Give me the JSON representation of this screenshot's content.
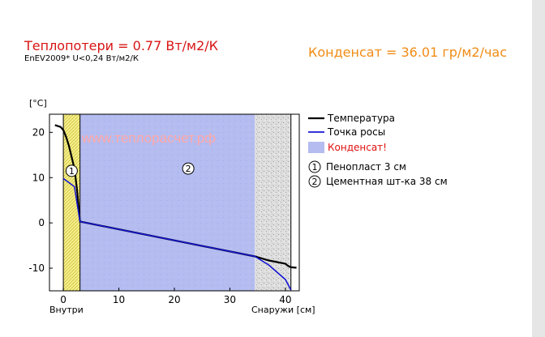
{
  "header": {
    "title": "Теплопотери = 0.77 Вт/м2/К",
    "subtitle": "EnEV2009* U<0,24 Вт/м2/К",
    "condensate": "Конденсат = 36.01 гр/м2/час"
  },
  "colors": {
    "title": "#d81414",
    "condensate": "#f08c14",
    "temperature": "#000000",
    "dew_point": "#1414d2",
    "condensate_zone": "#b4bcf0",
    "foam_layer": "#f5ef8c",
    "outdoor_zone": "#d8d8d8",
    "watermark": "#ffa8a8"
  },
  "chart_data": {
    "type": "line",
    "ylabel": "[°C]",
    "xlabel_left": "Внутри",
    "xlabel_right": "Снаружи [см]",
    "watermark": "www.теплорасчет.рф",
    "xlim": [
      -2.5,
      42.5
    ],
    "ylim": [
      -15,
      24
    ],
    "xticks": [
      0,
      10,
      20,
      30,
      40
    ],
    "yticks": [
      -10,
      0,
      10,
      20
    ],
    "grid": false,
    "legend_position": "right",
    "legend": [
      {
        "label": "Температура",
        "color": "#000000",
        "kind": "line"
      },
      {
        "label": "Точка росы",
        "color": "#1414d2",
        "kind": "line"
      },
      {
        "label": "Конденсат!",
        "color": "#b4bcf0",
        "kind": "box",
        "text_color": "#e01010"
      }
    ],
    "layers": [
      {
        "index": "1",
        "label": "Пенопласт 3 см",
        "x_start": 0,
        "x_end": 3
      },
      {
        "index": "2",
        "label": "Цементная шт-ка 38 см",
        "x_start": 3,
        "x_end": 41
      }
    ],
    "condensate_zone": {
      "x_start": 0.2,
      "x_end": 34.5
    },
    "series": [
      {
        "name": "Температура",
        "color": "#000000",
        "points": [
          [
            -1.5,
            21.6
          ],
          [
            -0.5,
            21.2
          ],
          [
            0,
            20.5
          ],
          [
            0.5,
            19
          ],
          [
            1,
            17
          ],
          [
            1.5,
            14.5
          ],
          [
            2,
            12
          ],
          [
            2.5,
            7
          ],
          [
            3,
            0.3
          ],
          [
            34.5,
            -7.4
          ],
          [
            37,
            -8.3
          ],
          [
            40,
            -9.0
          ],
          [
            40.5,
            -9.5
          ],
          [
            41,
            -9.8
          ],
          [
            42,
            -9.9
          ]
        ]
      },
      {
        "name": "Точка росы",
        "color": "#1414d2",
        "points": [
          [
            0,
            9.8
          ],
          [
            2,
            8.0
          ],
          [
            3,
            0.3
          ],
          [
            34.5,
            -7.4
          ],
          [
            37,
            -9.3
          ],
          [
            40,
            -12.5
          ],
          [
            41,
            -14.8
          ]
        ]
      }
    ]
  }
}
